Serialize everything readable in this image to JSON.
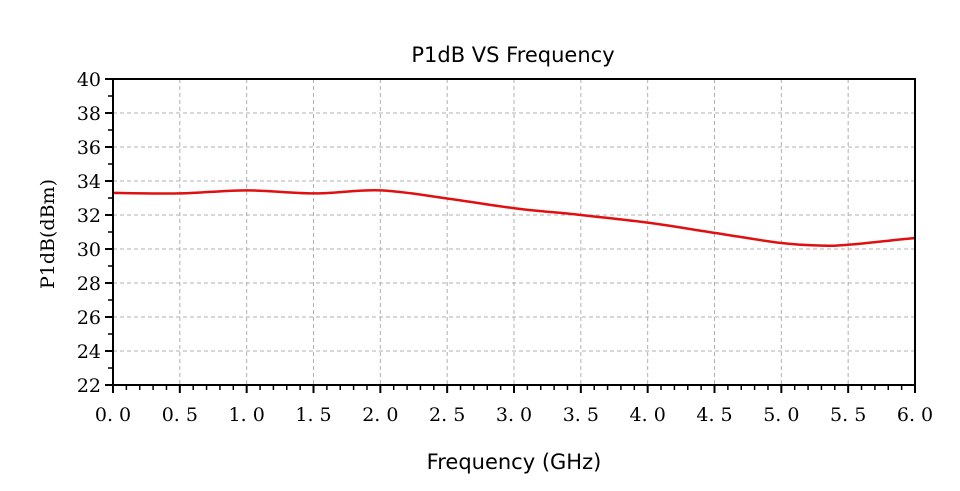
{
  "chart_data": {
    "type": "line",
    "title": "P1dB  VS  Frequency",
    "xlabel": "Frequency (GHz)",
    "ylabel": "P1dB(dBm)",
    "xlim": [
      0,
      6
    ],
    "ylim": [
      22,
      40
    ],
    "grid": true,
    "x_ticks": [
      "0.0",
      "0.5",
      "1.0",
      "1.5",
      "2.0",
      "2.5",
      "3.0",
      "3.5",
      "4.0",
      "4.5",
      "5.0",
      "5.5",
      "6.0"
    ],
    "y_ticks": [
      "22",
      "24",
      "26",
      "28",
      "30",
      "32",
      "34",
      "36",
      "38",
      "40"
    ],
    "series": [
      {
        "name": "P1dB",
        "color": "#e01010",
        "x": [
          0,
          0.5,
          1.0,
          1.5,
          2.0,
          2.5,
          3.0,
          3.5,
          4.0,
          4.5,
          5.0,
          5.3,
          5.5,
          6.0
        ],
        "y": [
          33.3,
          33.27,
          33.45,
          33.27,
          33.45,
          32.97,
          32.4,
          32.0,
          31.55,
          30.95,
          30.35,
          30.2,
          30.25,
          30.65
        ]
      }
    ]
  }
}
